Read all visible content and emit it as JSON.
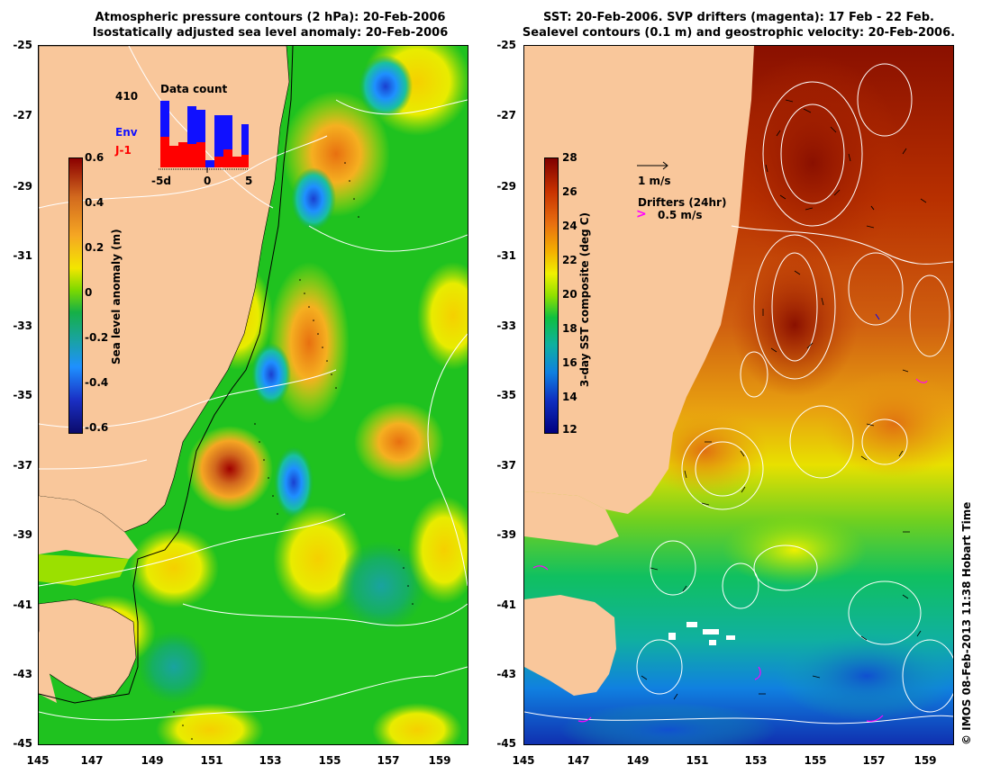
{
  "left_panel": {
    "title_line1": "Atmospheric pressure contours (2 hPa): 20-Feb-2006",
    "title_line2": "Isostatically adjusted sea level anomaly: 20-Feb-2006",
    "colorbar": {
      "title": "Sea level anomaly (m)",
      "labels": [
        "0.6",
        "0.4",
        "0.2",
        "0",
        "-0.2",
        "-0.4",
        "-0.6"
      ],
      "colors": [
        "#8b0000",
        "#d2691e",
        "#f5a623",
        "#f3e600",
        "#7cd900",
        "#16b046",
        "#19a3a0",
        "#1e90ff",
        "#1a2fc4",
        "#0b0b6b"
      ]
    },
    "inset": {
      "title": "Data count",
      "max_label": "410",
      "series": [
        {
          "name": "Env",
          "color": "#1010ff"
        },
        {
          "name": "J-1",
          "color": "#ff0000"
        }
      ],
      "x_ticks": [
        "-5d",
        "0",
        "5"
      ]
    }
  },
  "right_panel": {
    "title_line1": "SST: 20-Feb-2006. SVP drifters (magenta): 17 Feb - 22 Feb.",
    "title_line2": "Sealevel contours (0.1 m) and geostrophic velocity: 20-Feb-2006.",
    "colorbar": {
      "title": "3-day SST composite (deg C)",
      "labels": [
        "28",
        "26",
        "24",
        "22",
        "20",
        "18",
        "16",
        "14",
        "12"
      ],
      "colors": [
        "#800000",
        "#c83200",
        "#e87010",
        "#f4b000",
        "#f0f000",
        "#90e000",
        "#10c040",
        "#10b0a0",
        "#1080e0",
        "#1030c0",
        "#000080"
      ]
    },
    "velocity_legend": "1 m/s",
    "drifter_legend_title": "Drifters (24hr)",
    "drifter_legend_value": "0.5 m/s"
  },
  "axes": {
    "lat_ticks": [
      "-25",
      "-27",
      "-29",
      "-31",
      "-33",
      "-35",
      "-37",
      "-39",
      "-41",
      "-43",
      "-45"
    ],
    "lon_ticks": [
      "145",
      "147",
      "149",
      "151",
      "153",
      "155",
      "157",
      "159"
    ]
  },
  "colors": {
    "land": "#f9c79b",
    "sea_background_left": "#1fc21f",
    "sea_background_right": "#e07a1a"
  },
  "credit": "© IMOS 08-Feb-2013 11:38 Hobart Time"
}
